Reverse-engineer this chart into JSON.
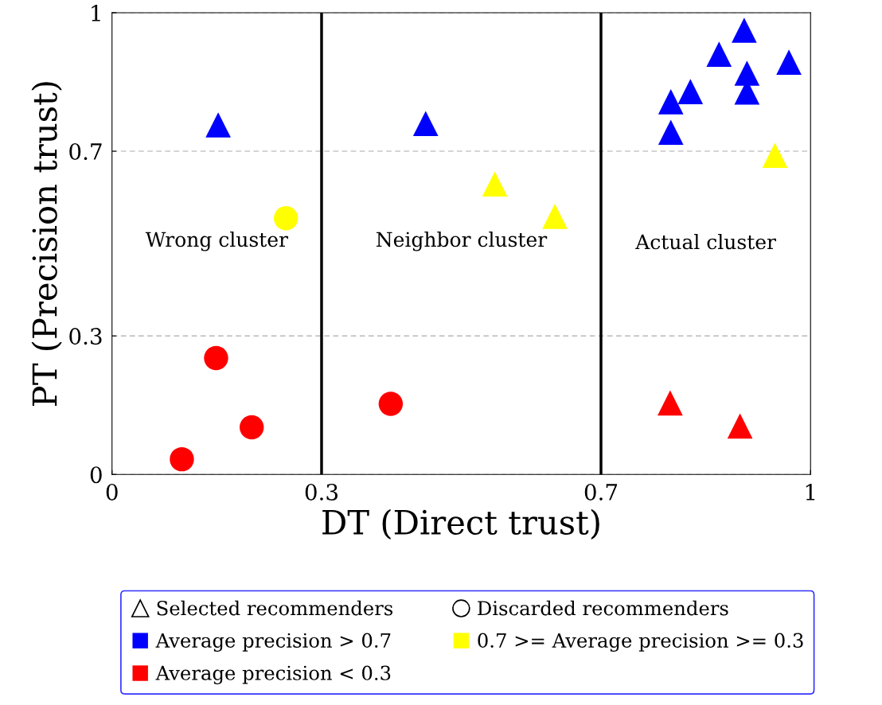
{
  "chart_data": {
    "type": "scatter",
    "xlabel": "DT (Direct trust)",
    "ylabel": "PT (Precision trust)",
    "xlim": [
      0,
      1
    ],
    "ylim": [
      0,
      1
    ],
    "xticks": [
      0,
      0.3,
      0.7,
      1
    ],
    "yticks": [
      0,
      0.3,
      0.7,
      1
    ],
    "grid": "y",
    "legend": "bottom",
    "series": [
      {
        "name": "Average precision > 0.7",
        "color": "#0000ff",
        "marker": "triangle",
        "x": [
          0.152,
          0.449,
          0.8,
          0.828,
          0.8,
          0.869,
          0.905,
          0.909,
          0.909,
          0.969
        ],
        "values": [
          0.757,
          0.76,
          0.807,
          0.829,
          0.741,
          0.91,
          0.962,
          0.869,
          0.828,
          0.893
        ]
      },
      {
        "name": "0.7 >= Average precision >= 0.3",
        "color": "#ffff00",
        "marker": "triangle",
        "x": [
          0.548,
          0.634,
          0.949
        ],
        "values": [
          0.629,
          0.559,
          0.691
        ]
      },
      {
        "name": "Average precision < 0.3",
        "color": "#ff0000",
        "marker": "triangle",
        "x": [
          0.799,
          0.899
        ],
        "values": [
          0.155,
          0.105
        ]
      },
      {
        "color": "#ffff00",
        "marker": "circle",
        "x": [
          0.249
        ],
        "values": [
          0.555
        ]
      },
      {
        "color": "#ff0000",
        "marker": "circle",
        "x": [
          0.149,
          0.2,
          0.1,
          0.399
        ],
        "values": [
          0.252,
          0.102,
          0.033,
          0.153
        ]
      }
    ],
    "ref_lines": [
      {
        "axis": "x",
        "value": 0.3,
        "color": "#000000",
        "line_style": "solid"
      },
      {
        "axis": "x",
        "value": 0.7,
        "color": "#000000",
        "line_style": "solid"
      }
    ],
    "annotations": [
      "Selected recommenders",
      "Discarded recommenders",
      "Wrong cluster",
      "Neighbor cluster",
      "Actual cluster"
    ]
  }
}
